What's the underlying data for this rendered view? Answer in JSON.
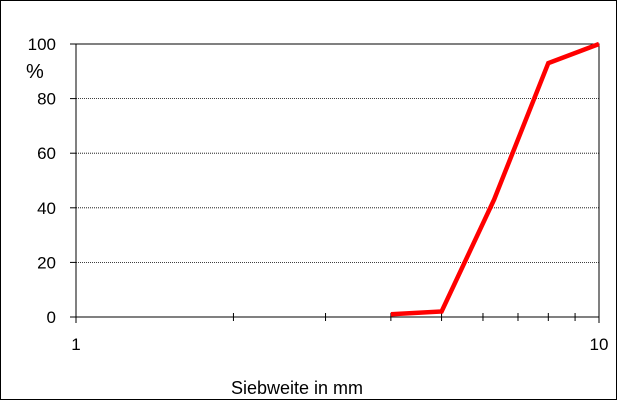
{
  "chart_data": {
    "type": "line",
    "title": "",
    "xlabel": "Siebweite in mm",
    "ylabel": "%",
    "xscale": "log",
    "xlim": [
      1,
      10
    ],
    "ylim": [
      0,
      100
    ],
    "x_ticks": [
      1,
      10
    ],
    "x_tick_labels": [
      "1",
      "10"
    ],
    "x_minor_ticks": [
      2,
      3,
      4,
      5,
      6,
      7,
      8,
      9
    ],
    "y_ticks": [
      0,
      20,
      40,
      60,
      80,
      100
    ],
    "y_tick_labels": [
      "0",
      "20",
      "40",
      "60",
      "80",
      "100"
    ],
    "grid": "horizontal dotted",
    "legend": "none",
    "series": [
      {
        "color": "#ff0000",
        "x": [
          4.0,
          5.0,
          6.3,
          8.0,
          10.0
        ],
        "y": [
          1,
          2,
          43,
          93,
          100
        ]
      }
    ]
  }
}
